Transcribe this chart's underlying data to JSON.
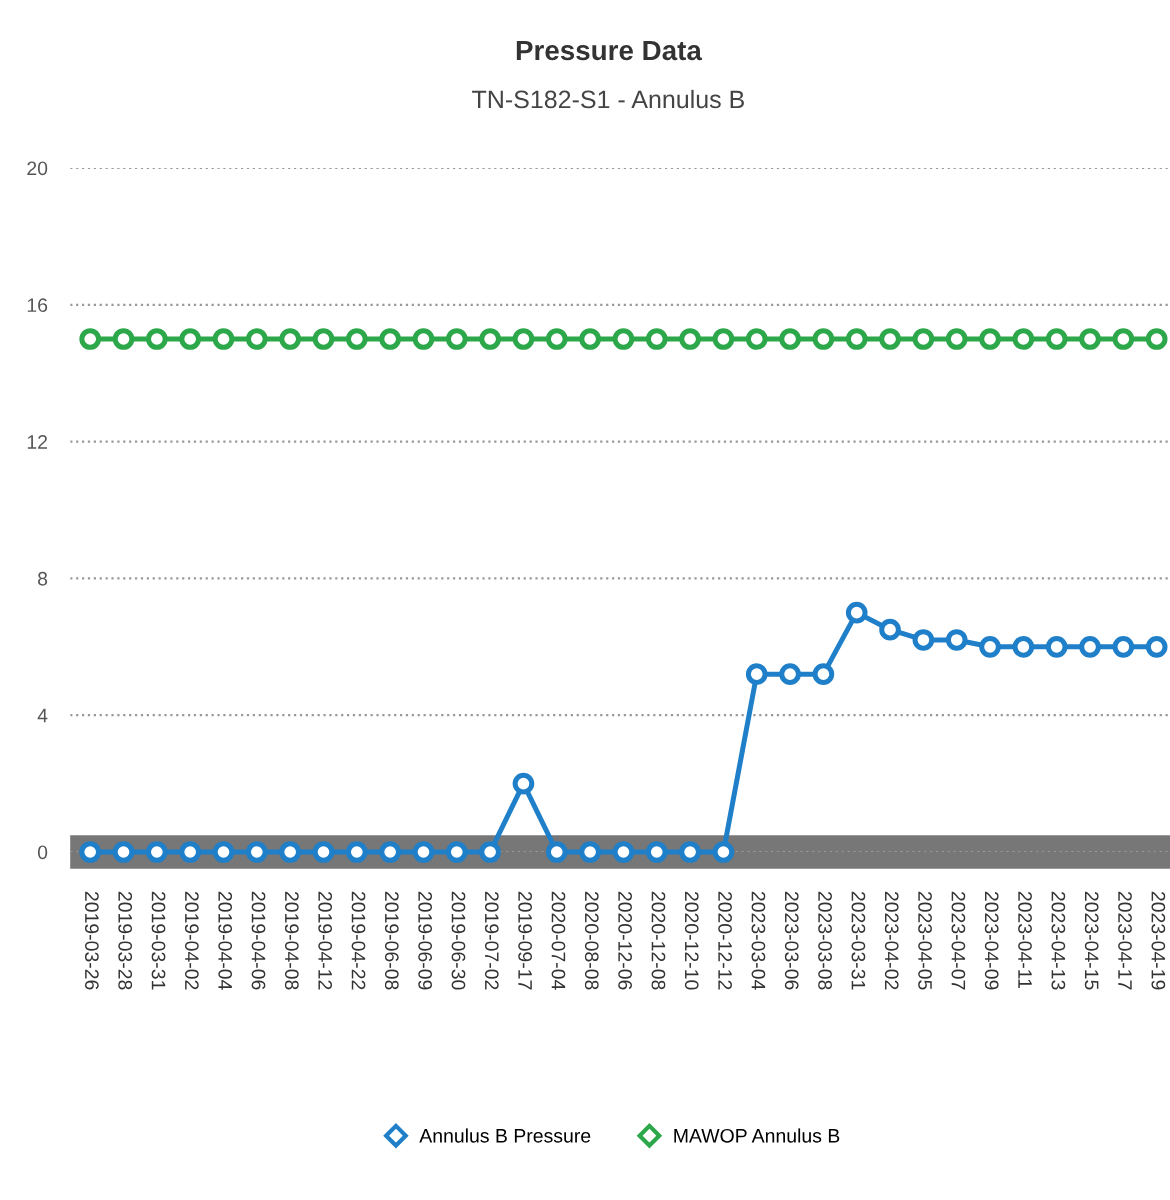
{
  "chart_data": {
    "type": "line",
    "title": "Pressure Data",
    "subtitle": "TN-S182-S1 - Annulus B",
    "categories": [
      "2019-03-26",
      "2019-03-28",
      "2019-03-31",
      "2019-04-02",
      "2019-04-04",
      "2019-04-06",
      "2019-04-08",
      "2019-04-12",
      "2019-04-22",
      "2019-06-08",
      "2019-06-09",
      "2019-06-30",
      "2019-07-02",
      "2019-09-17",
      "2020-07-04",
      "2020-08-08",
      "2020-12-06",
      "2020-12-08",
      "2020-12-10",
      "2020-12-12",
      "2023-03-04",
      "2023-03-06",
      "2023-03-08",
      "2023-03-31",
      "2023-04-02",
      "2023-04-05",
      "2023-04-07",
      "2023-04-09",
      "2023-04-11",
      "2023-04-13",
      "2023-04-15",
      "2023-04-17",
      "2023-04-19"
    ],
    "series": [
      {
        "name": "Annulus B Pressure",
        "color": "#1f7fc8",
        "values": [
          0,
          0,
          0,
          0,
          0,
          0,
          0,
          0,
          0,
          0,
          0,
          0,
          0,
          2,
          0,
          0,
          0,
          0,
          0,
          0,
          5.2,
          5.2,
          5.2,
          7.0,
          6.5,
          6.2,
          6.2,
          6.0,
          6.0,
          6.0,
          6.0,
          6.0,
          6.0
        ]
      },
      {
        "name": "MAWOP Annulus B",
        "color": "#2ca84a",
        "values": [
          15,
          15,
          15,
          15,
          15,
          15,
          15,
          15,
          15,
          15,
          15,
          15,
          15,
          15,
          15,
          15,
          15,
          15,
          15,
          15,
          15,
          15,
          15,
          15,
          15,
          15,
          15,
          15,
          15,
          15,
          15,
          15,
          15
        ]
      }
    ],
    "ylim": [
      0,
      20
    ],
    "yticks": [
      0,
      4,
      8,
      12,
      16,
      20
    ],
    "grid": "y",
    "legend": "bottom",
    "marker": "circle",
    "line_style": "solid"
  }
}
